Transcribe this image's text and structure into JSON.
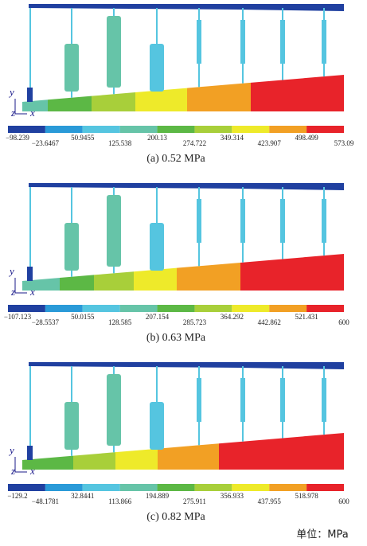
{
  "panels": [
    {
      "caption": "(a) 0.52 MPa",
      "ticks": [
        "−98.239",
        "−23.6467",
        "50.9455",
        "125.538",
        "200.13",
        "274.722",
        "349.314",
        "423.907",
        "498.499",
        "573.09"
      ]
    },
    {
      "caption": "(b) 0.63 MPa",
      "ticks": [
        "−107.123",
        "−28.5537",
        "50.0155",
        "128.585",
        "207.154",
        "285.723",
        "364.292",
        "442.862",
        "521.431",
        "600"
      ]
    },
    {
      "caption": "(c) 0.82 MPa",
      "ticks": [
        "−129.2",
        "−48.1781",
        "32.8441",
        "113.866",
        "194.889",
        "275.911",
        "356.933",
        "437.955",
        "518.978",
        "600"
      ]
    }
  ],
  "axis_labels": [
    "y",
    "z",
    "x"
  ],
  "colors": [
    "#2040a0",
    "#2a9ad8",
    "#55c5e0",
    "#66c4a8",
    "#5cb845",
    "#a8cf3a",
    "#eeea2a",
    "#f2a024",
    "#e8232a"
  ],
  "unit": "单位：MPa"
}
